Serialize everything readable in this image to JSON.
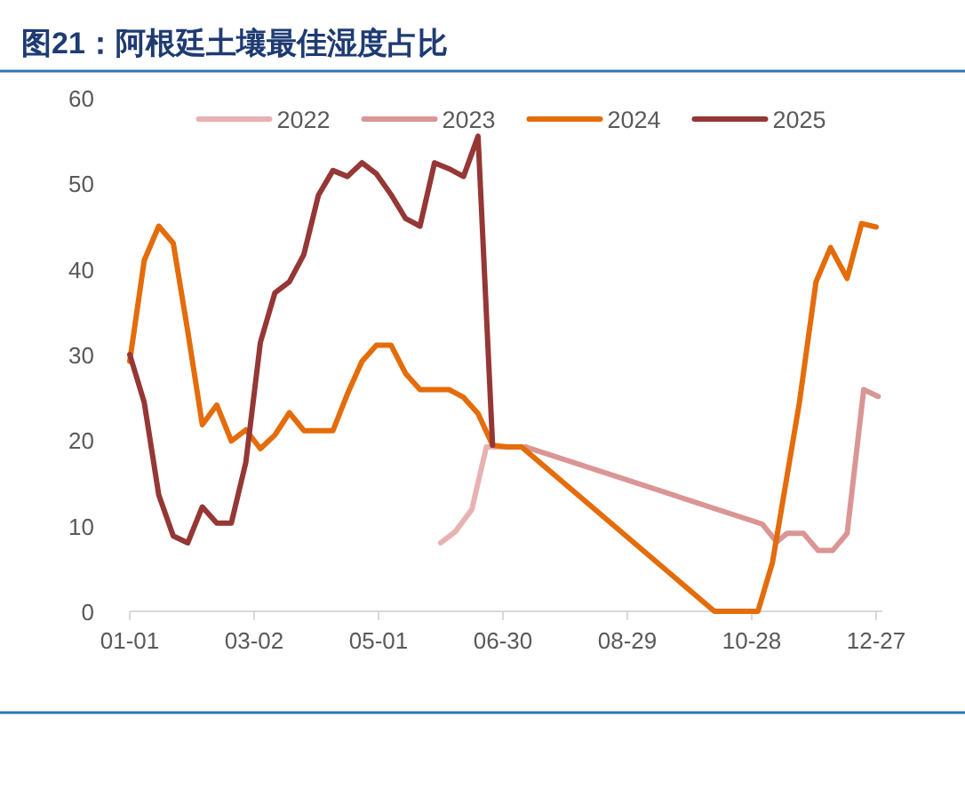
{
  "chart_data": {
    "type": "line",
    "title": "图21：阿根廷土壤最佳湿度占比",
    "xlim": [
      "--01-01",
      "--12-30"
    ],
    "xticks": [
      {
        "value": "--01-01",
        "label": "01-01"
      },
      {
        "value": "--03-02",
        "label": "03-02"
      },
      {
        "value": "--05-01",
        "label": "05-01"
      },
      {
        "value": "--06-30",
        "label": "06-30"
      },
      {
        "value": "--08-29",
        "label": "08-29"
      },
      {
        "value": "--10-28",
        "label": "10-28"
      },
      {
        "value": "--12-27",
        "label": "12-27"
      }
    ],
    "ylim": [
      0,
      60
    ],
    "yticks": [
      0,
      10,
      20,
      30,
      40,
      50,
      60
    ],
    "grid": false,
    "legend": "top",
    "marker": "none",
    "line_style": "solid",
    "series": [
      {
        "name": "2022",
        "color": "#e8b2b2",
        "x": [
          "--05-31",
          "--06-07",
          "--06-15",
          "--06-22",
          "--06-27",
          "--07-11"
        ],
        "values": [
          8,
          9.3,
          11.9,
          19.2,
          19.2,
          19.2
        ]
      },
      {
        "name": "2023",
        "color": "#d99694",
        "x": [
          "--07-11",
          "--11-02",
          "--11-09",
          "--11-14",
          "--11-22",
          "--11-29",
          "--12-06",
          "--12-13",
          "--12-21",
          "--12-28"
        ],
        "values": [
          19.2,
          10.2,
          8.1,
          9.1,
          9.1,
          7.1,
          7.1,
          9.1,
          25.9,
          25.1
        ]
      },
      {
        "name": "2024",
        "color": "#e46c0a",
        "x": [
          "--01-01",
          "--01-08",
          "--01-15",
          "--01-22",
          "--01-29",
          "--02-05",
          "--02-12",
          "--02-19",
          "--02-26",
          "--03-05",
          "--03-12",
          "--03-19",
          "--03-26",
          "--04-02",
          "--04-09",
          "--04-16",
          "--04-23",
          "--04-30",
          "--05-07",
          "--05-14",
          "--05-21",
          "--05-28",
          "--06-04",
          "--06-11",
          "--06-18",
          "--06-25",
          "--07-02",
          "--07-09",
          "--10-10",
          "--10-31",
          "--11-07",
          "--11-20",
          "--11-28",
          "--12-05",
          "--12-13",
          "--12-20",
          "--12-27"
        ],
        "values": [
          29.2,
          41,
          45,
          43,
          32.7,
          21.8,
          24.1,
          19.9,
          21.2,
          19,
          20.6,
          23.2,
          21.1,
          21.1,
          21.1,
          25.4,
          29.2,
          31.1,
          31.1,
          27.8,
          25.9,
          25.9,
          25.9,
          25,
          23.1,
          19.4,
          19.2,
          19.2,
          0,
          0,
          5.7,
          24.4,
          38.5,
          42.5,
          38.9,
          45.3,
          44.9
        ]
      },
      {
        "name": "2025",
        "color": "#953735",
        "x": [
          "--01-01",
          "--01-08",
          "--01-15",
          "--01-22",
          "--01-29",
          "--02-05",
          "--02-12",
          "--02-19",
          "--02-26",
          "--03-05",
          "--03-12",
          "--03-19",
          "--03-26",
          "--04-02",
          "--04-09",
          "--04-16",
          "--04-23",
          "--04-30",
          "--05-07",
          "--05-14",
          "--05-21",
          "--05-28",
          "--06-04",
          "--06-11",
          "--06-18",
          "--06-25"
        ],
        "values": [
          30,
          24.4,
          13.6,
          8.8,
          8,
          12.2,
          10.3,
          10.3,
          17.4,
          31.4,
          37.2,
          38.5,
          41.7,
          48.6,
          51.5,
          50.8,
          52.4,
          51.1,
          48.7,
          45.9,
          45,
          52.4,
          51.7,
          50.8,
          55.5,
          19.4
        ]
      }
    ]
  }
}
